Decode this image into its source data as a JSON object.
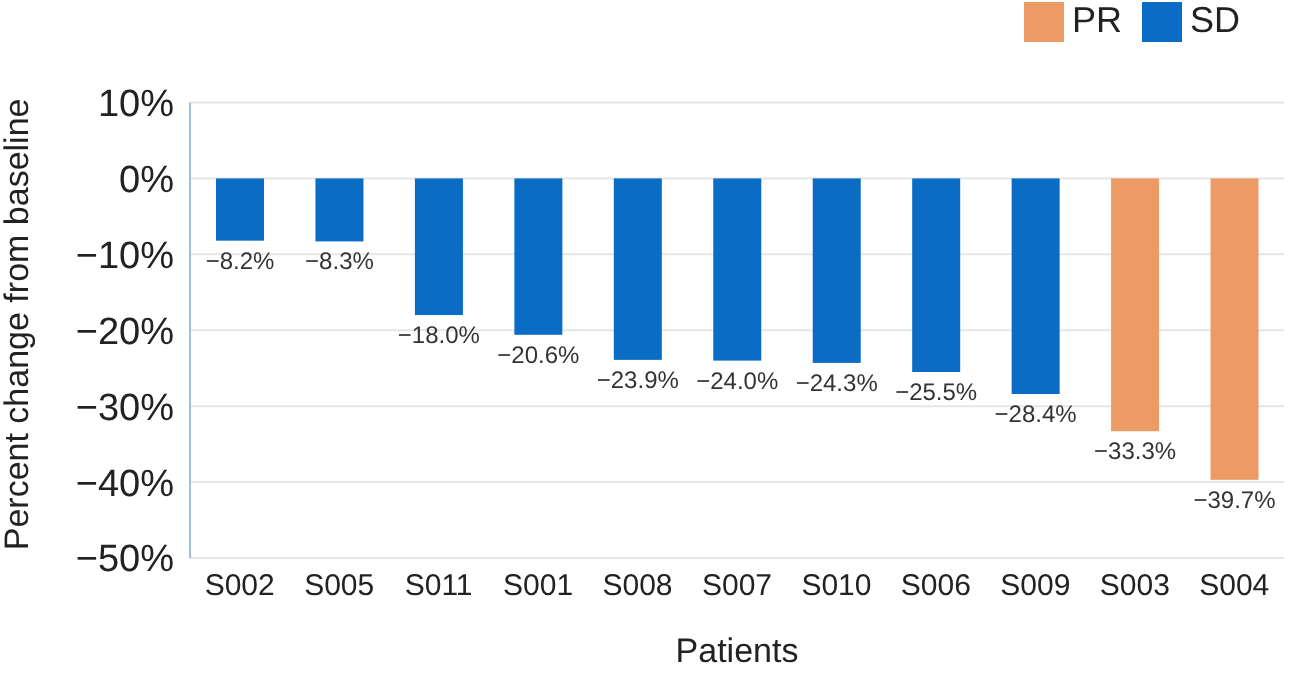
{
  "chart_data": {
    "type": "bar",
    "stacked": true,
    "xlabel": "Patients",
    "ylabel": "Percent change from baseline",
    "categories": [
      "S002",
      "S005",
      "S011",
      "S001",
      "S008",
      "S007",
      "S010",
      "S006",
      "S009",
      "S003",
      "S004"
    ],
    "series": [
      {
        "name": "PR",
        "color": "#ec9b64",
        "values": [
          null,
          null,
          null,
          null,
          null,
          null,
          null,
          null,
          null,
          -33.3,
          -39.7
        ],
        "value_labels": [
          null,
          null,
          null,
          null,
          null,
          null,
          null,
          null,
          null,
          "−33.3%",
          "−39.7%"
        ]
      },
      {
        "name": "SD",
        "color": "#0a6cc4",
        "values": [
          -8.2,
          -8.3,
          -18.0,
          -20.6,
          -23.9,
          -24.0,
          -24.3,
          -25.5,
          -28.4,
          null,
          null
        ],
        "value_labels": [
          "−8.2%",
          "−8.3%",
          "−18.0%",
          "−20.6%",
          "−23.9%",
          "−24.0%",
          "−24.3%",
          "−25.5%",
          "−28.4%",
          null,
          null
        ]
      }
    ],
    "ylim": [
      -50,
      10
    ],
    "yticks": [
      {
        "value": 10,
        "label": "10%"
      },
      {
        "value": 0,
        "label": "0%"
      },
      {
        "value": -10,
        "label": "−10%"
      },
      {
        "value": -20,
        "label": "−20%"
      },
      {
        "value": -30,
        "label": "−30%"
      },
      {
        "value": -40,
        "label": "−40%"
      },
      {
        "value": -50,
        "label": "−50%"
      }
    ],
    "grid": "y",
    "legend": "top right"
  }
}
